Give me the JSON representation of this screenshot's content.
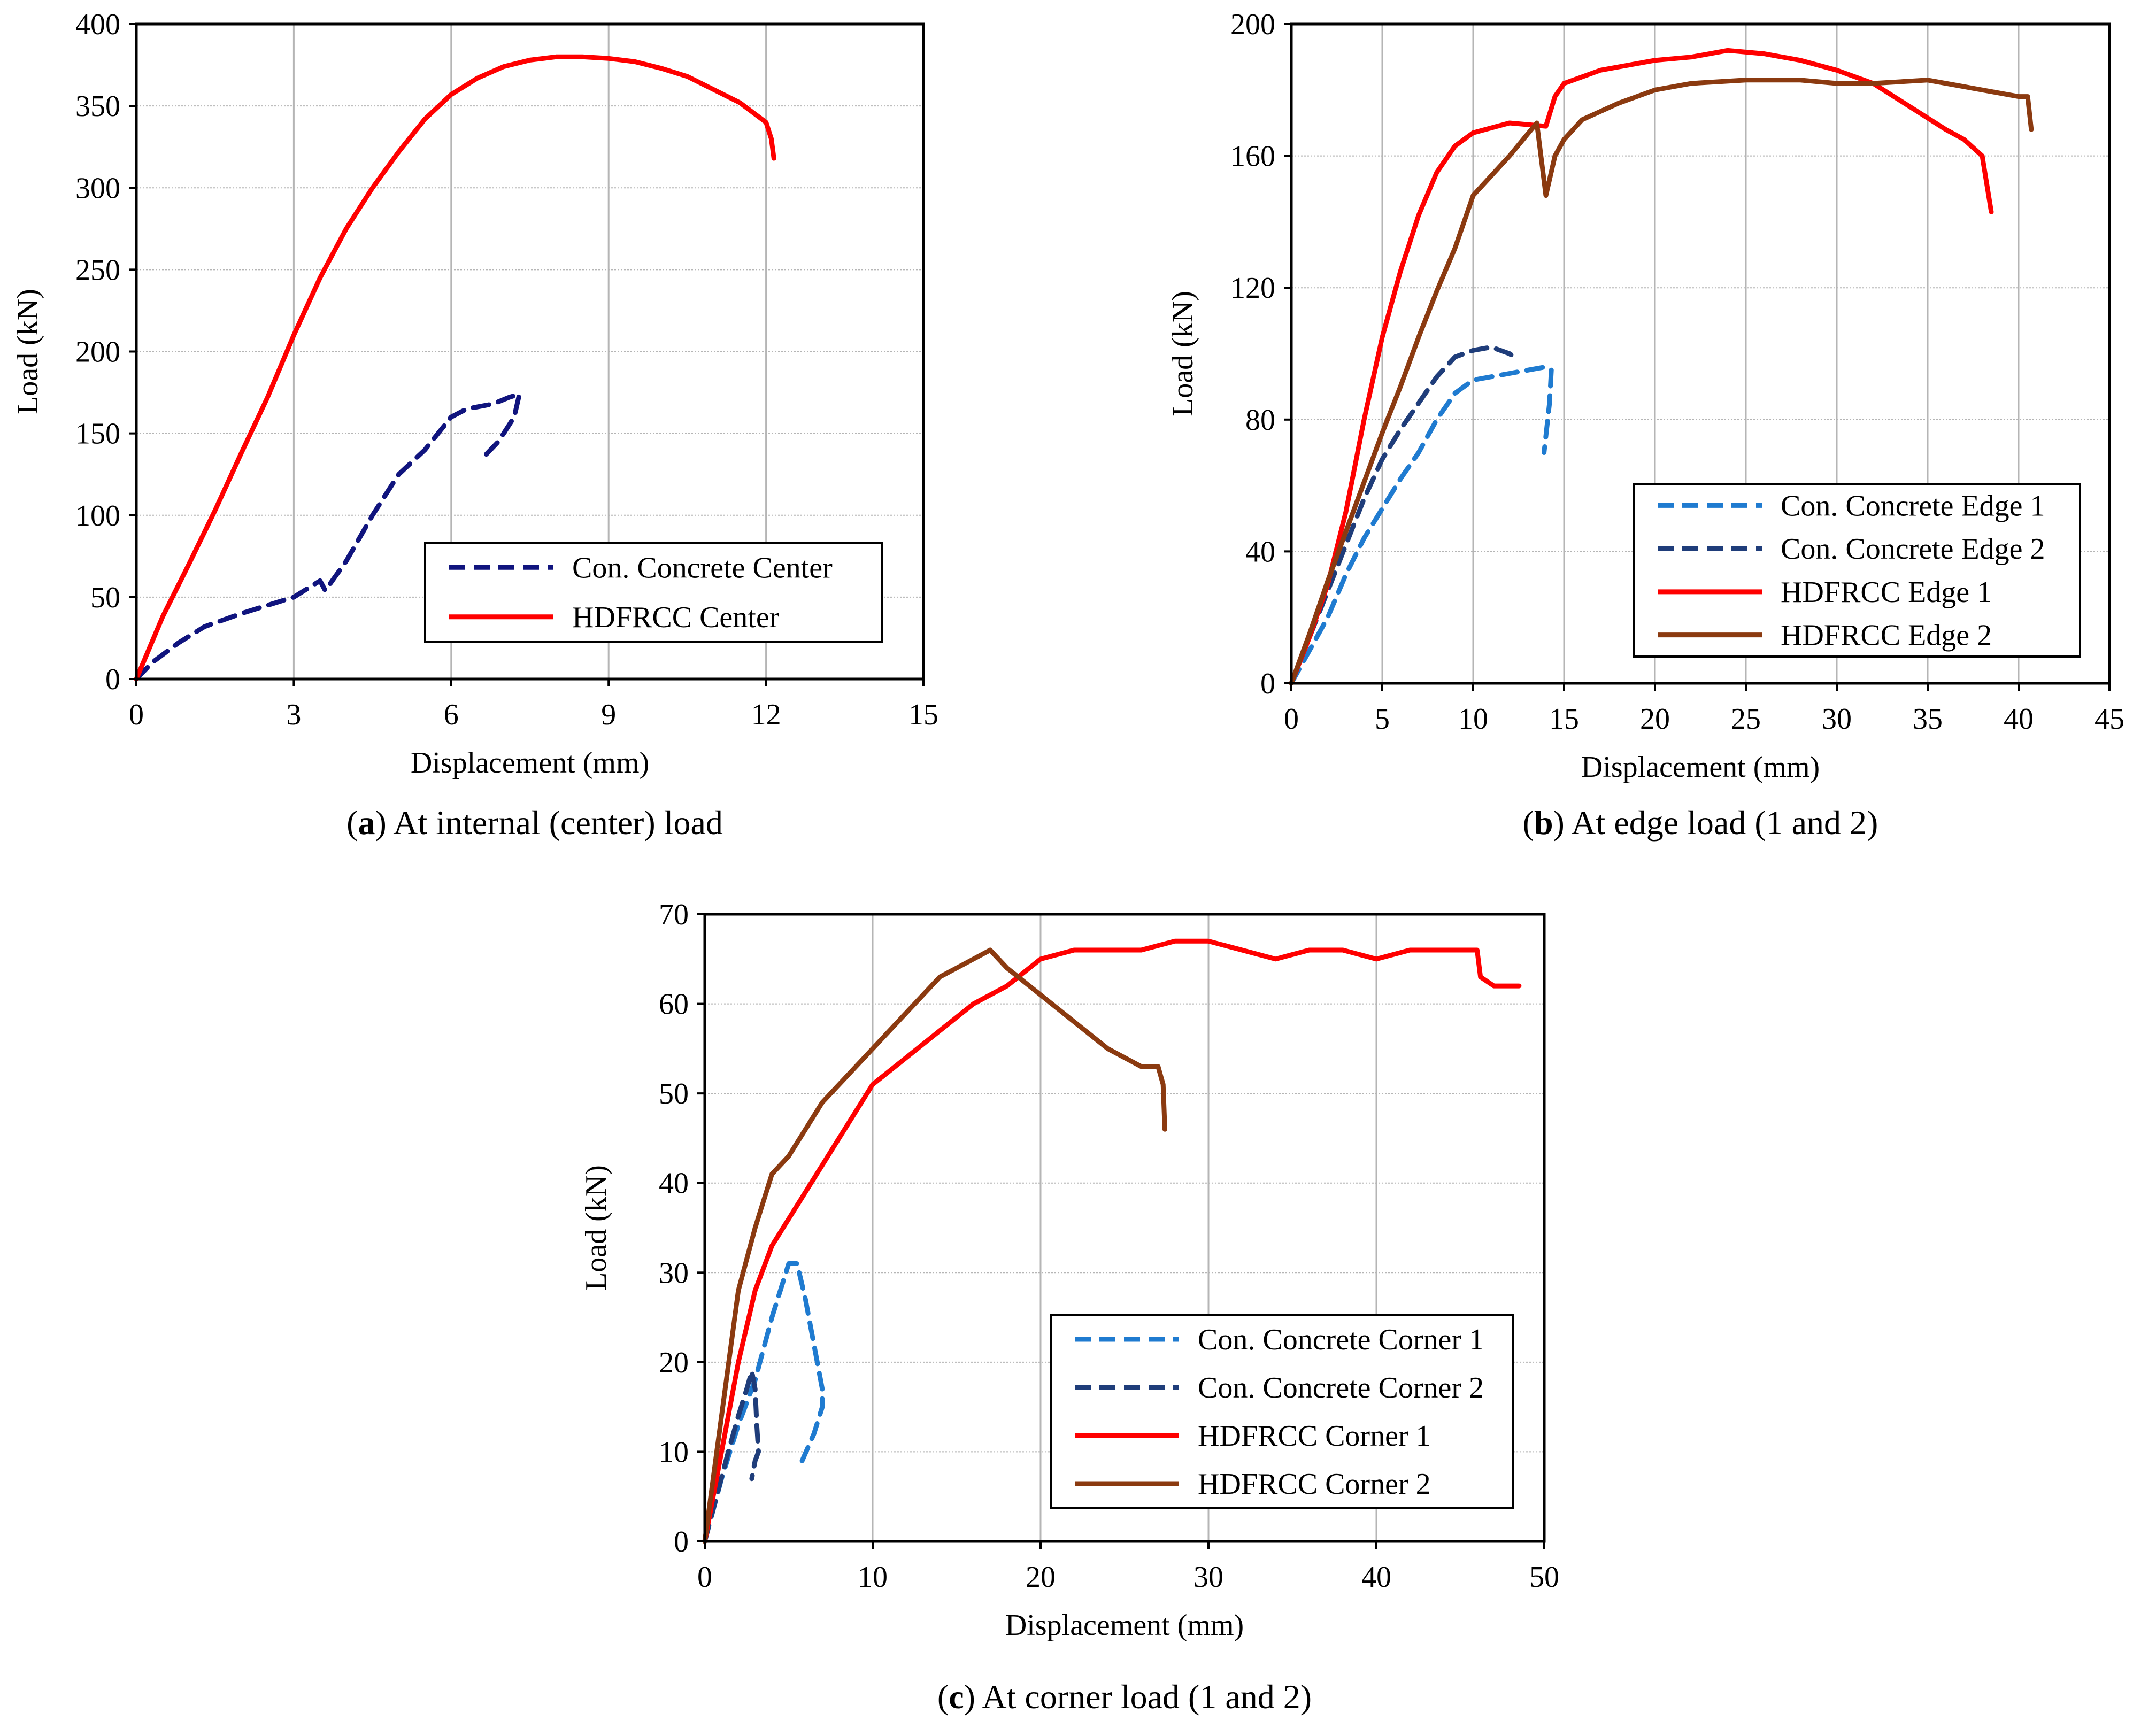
{
  "figure": {
    "panels": [
      {
        "id": "a",
        "letter": "a",
        "caption": "At internal (center) load"
      },
      {
        "id": "b",
        "letter": "b",
        "caption": "At edge load (1 and 2)"
      },
      {
        "id": "c",
        "letter": "c",
        "caption": "At corner load (1 and 2)"
      }
    ]
  },
  "chart_data": [
    {
      "type": "line",
      "panel": "a",
      "xlabel": "Displacement (mm)",
      "ylabel": "Load (kN)",
      "xlim": [
        0,
        15
      ],
      "ylim": [
        0,
        400
      ],
      "xticks": [
        0,
        3,
        6,
        9,
        12,
        15
      ],
      "yticks": [
        0,
        50,
        100,
        150,
        200,
        250,
        300,
        350,
        400
      ],
      "grid": "vertical and horizontal",
      "legend_position": "lower-right",
      "series": [
        {
          "name": "Con. Concrete Center",
          "color": "#10147e",
          "style": "dashed",
          "x": [
            0,
            0.3,
            0.8,
            1.3,
            2.0,
            2.6,
            3.0,
            3.3,
            3.5,
            3.6,
            4.0,
            4.5,
            5.0,
            5.5,
            6.0,
            6.3,
            6.8,
            7.1,
            7.3,
            7.2,
            6.9,
            6.6
          ],
          "y": [
            0,
            10,
            22,
            32,
            40,
            46,
            50,
            56,
            60,
            54,
            72,
            100,
            125,
            140,
            160,
            165,
            168,
            172,
            174,
            160,
            145,
            135
          ]
        },
        {
          "name": "HDFRCC Center",
          "color": "#ff0000",
          "style": "solid",
          "x": [
            0,
            0.5,
            1.0,
            1.5,
            2.0,
            2.5,
            3.0,
            3.5,
            4.0,
            4.5,
            5.0,
            5.5,
            6.0,
            6.5,
            7.0,
            7.5,
            8.0,
            8.5,
            9.0,
            9.5,
            10.0,
            10.5,
            11.0,
            11.5,
            12.0,
            12.1,
            12.15
          ],
          "y": [
            0,
            38,
            70,
            103,
            138,
            172,
            210,
            245,
            275,
            300,
            322,
            342,
            357,
            367,
            374,
            378,
            380,
            380,
            379,
            377,
            373,
            368,
            360,
            352,
            340,
            330,
            318
          ]
        }
      ]
    },
    {
      "type": "line",
      "panel": "b",
      "xlabel": "Displacement (mm)",
      "ylabel": "Load (kN)",
      "xlim": [
        0,
        45
      ],
      "ylim": [
        0,
        200
      ],
      "xticks": [
        0,
        5,
        10,
        15,
        20,
        25,
        30,
        35,
        40,
        45
      ],
      "yticks": [
        0,
        40,
        80,
        120,
        160,
        200
      ],
      "grid": "vertical and horizontal",
      "legend_position": "lower-right",
      "series": [
        {
          "name": "Con. Concrete Edge 1",
          "color": "#1f7bd0",
          "style": "dashed",
          "x": [
            0,
            1,
            2,
            3,
            4,
            5,
            6,
            7,
            8,
            9,
            10,
            11,
            12,
            13,
            14,
            14.3,
            14.2,
            13.9
          ],
          "y": [
            0,
            10,
            20,
            33,
            44,
            53,
            62,
            70,
            80,
            88,
            92,
            93,
            94,
            95,
            96,
            95,
            85,
            70
          ]
        },
        {
          "name": "Con. Concrete Edge 2",
          "color": "#1f3d7a",
          "style": "dashed",
          "x": [
            0,
            1,
            2,
            3,
            4,
            5,
            6,
            7,
            8,
            9,
            10,
            11,
            12,
            12.5
          ],
          "y": [
            0,
            14,
            28,
            42,
            56,
            68,
            77,
            85,
            93,
            99,
            101,
            102,
            100,
            98
          ]
        },
        {
          "name": "HDFRCC Edge 1",
          "color": "#ff0000",
          "style": "solid",
          "x": [
            0,
            1,
            2,
            3,
            4,
            5,
            6,
            7,
            8,
            9,
            10,
            12,
            14,
            14.5,
            15,
            17,
            20,
            22,
            24,
            26,
            28,
            30,
            32,
            34,
            36,
            37,
            38,
            38.5
          ],
          "y": [
            0,
            14,
            30,
            52,
            80,
            105,
            125,
            142,
            155,
            163,
            167,
            170,
            169,
            178,
            182,
            186,
            189,
            190,
            192,
            191,
            189,
            186,
            182,
            175,
            168,
            165,
            160,
            143
          ]
        },
        {
          "name": "HDFRCC Edge 2",
          "color": "#8b3a10",
          "style": "solid",
          "x": [
            0,
            1,
            2,
            3,
            4,
            5,
            6,
            7,
            8,
            9,
            10,
            12,
            13.5,
            14,
            14.5,
            15,
            16,
            18,
            20,
            22,
            25,
            28,
            30,
            32,
            35,
            37,
            40,
            40.5,
            40.7
          ],
          "y": [
            0,
            15,
            31,
            46,
            61,
            76,
            90,
            105,
            119,
            132,
            148,
            160,
            170,
            148,
            160,
            165,
            171,
            176,
            180,
            182,
            183,
            183,
            182,
            182,
            183,
            181,
            178,
            178,
            168
          ]
        }
      ]
    },
    {
      "type": "line",
      "panel": "c",
      "xlabel": "Displacement (mm)",
      "ylabel": "Load (kN)",
      "xlim": [
        0,
        50
      ],
      "ylim": [
        0,
        70
      ],
      "xticks": [
        0,
        10,
        20,
        30,
        40,
        50
      ],
      "yticks": [
        0,
        10,
        20,
        30,
        40,
        50,
        60,
        70
      ],
      "grid": "vertical and horizontal",
      "legend_position": "lower-right",
      "series": [
        {
          "name": "Con. Concrete Corner 1",
          "color": "#1f7bd0",
          "style": "dashed",
          "x": [
            0,
            1,
            2,
            3,
            4,
            5,
            5.5,
            6,
            6.5,
            7,
            7,
            6.5,
            5.8
          ],
          "y": [
            0,
            7,
            13,
            18,
            25,
            31,
            31,
            27,
            22,
            17,
            15,
            12,
            9
          ]
        },
        {
          "name": "Con. Concrete Corner 2",
          "color": "#1f3d7a",
          "style": "dashed",
          "x": [
            0,
            0.7,
            1.4,
            2.0,
            2.5,
            2.8,
            3.0,
            3.1,
            3.2,
            3.0,
            2.8
          ],
          "y": [
            0,
            5,
            10,
            14,
            17,
            19,
            17,
            13,
            10,
            9,
            7
          ]
        },
        {
          "name": "HDFRCC Corner 1",
          "color": "#ff0000",
          "style": "solid",
          "x": [
            0,
            1,
            2,
            3,
            4,
            5,
            6,
            7,
            8,
            9,
            10,
            12,
            14,
            16,
            18,
            20,
            22,
            24,
            26,
            28,
            30,
            32,
            34,
            36,
            38,
            40,
            42,
            44,
            46,
            46.2,
            47,
            48.5
          ],
          "y": [
            0,
            10,
            20,
            28,
            33,
            36,
            39,
            42,
            45,
            48,
            51,
            54,
            57,
            60,
            62,
            65,
            66,
            66,
            66,
            67,
            67,
            66,
            65,
            66,
            66,
            65,
            66,
            66,
            66,
            63,
            62,
            62
          ]
        },
        {
          "name": "HDFRCC Corner 2",
          "color": "#8b3a10",
          "style": "solid",
          "x": [
            0,
            1,
            2,
            3,
            4,
            5,
            6,
            7,
            8,
            10,
            12,
            14,
            16,
            17,
            18,
            20,
            22,
            24,
            26,
            27,
            27.3,
            27.4
          ],
          "y": [
            0,
            14,
            28,
            35,
            41,
            43,
            46,
            49,
            51,
            55,
            59,
            63,
            65,
            66,
            64,
            61,
            58,
            55,
            53,
            53,
            51,
            46
          ]
        }
      ]
    }
  ]
}
